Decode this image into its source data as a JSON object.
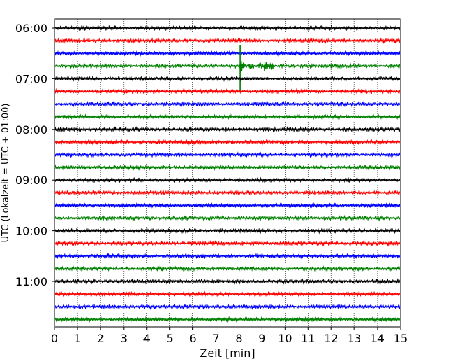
{
  "chart_data": {
    "type": "line",
    "title": "",
    "xlabel": "Zeit  [min]",
    "ylabel": "UTC (Lokalzeit = UTC + 01:00)",
    "xlim": [
      0,
      15
    ],
    "x_ticks": [
      0,
      1,
      2,
      3,
      4,
      5,
      6,
      7,
      8,
      9,
      10,
      11,
      12,
      13,
      14,
      15
    ],
    "y_tick_labels": [
      "06:00",
      "07:00",
      "08:00",
      "09:00",
      "10:00",
      "11:00"
    ],
    "grid": "vertical-dotted",
    "trace_interval_minutes": 15,
    "start_time": "06:00",
    "traces_count": 24,
    "trace_colors": [
      "#000000",
      "#ff0000",
      "#0000ff",
      "#008000"
    ],
    "events": [
      {
        "trace_index": 3,
        "onset_min": 8.05,
        "secondary_min": 9.1
      }
    ]
  }
}
